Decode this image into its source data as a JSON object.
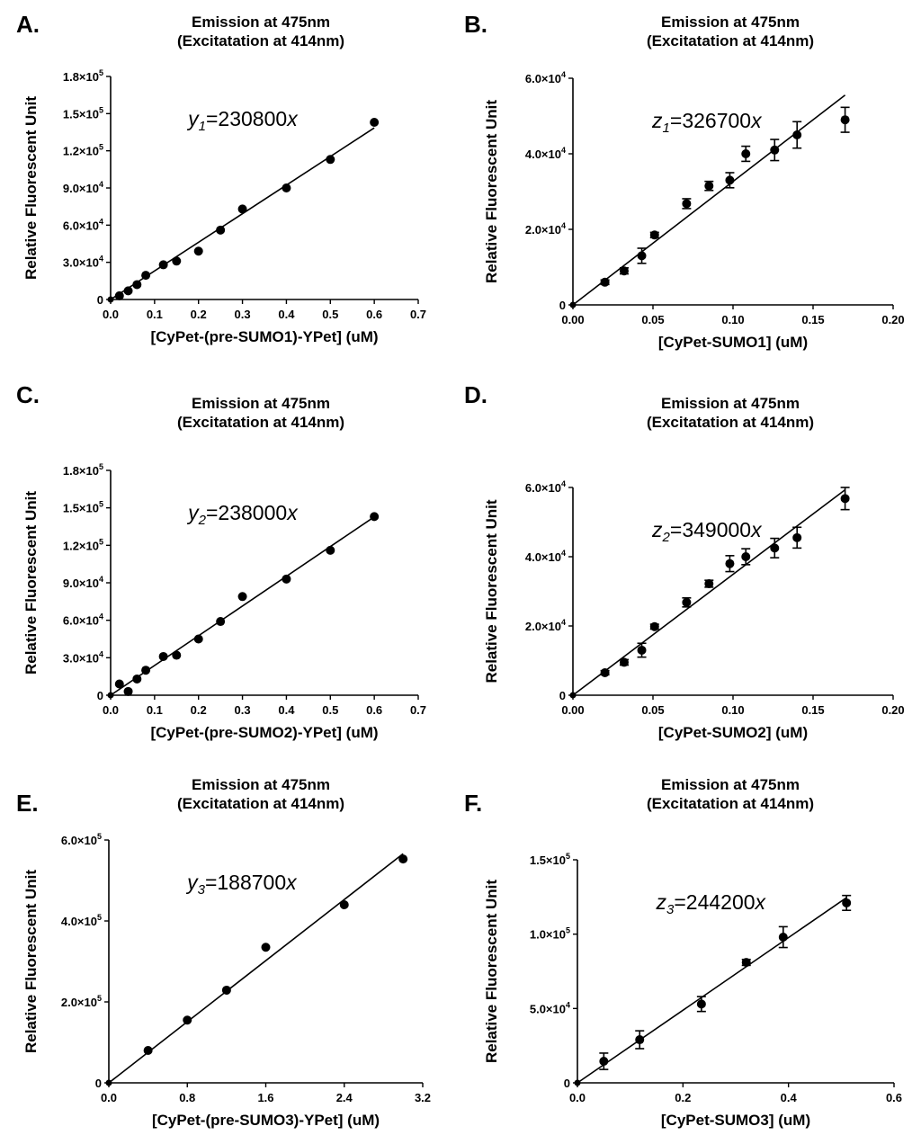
{
  "chart_data": [
    {
      "type": "scatter",
      "panel_label": "A.",
      "title_line1": "Emission at 475nm",
      "title_line2": "(Excitatation at 414nm)",
      "xlabel": "[CyPet-(pre-SUMO1)-YPet] (uM)",
      "ylabel": "Relative Fluorescent Unit",
      "xlim": [
        0,
        0.7
      ],
      "ylim": [
        0,
        180000
      ],
      "xticks": [
        0,
        0.1,
        0.2,
        0.3,
        0.4,
        0.5,
        0.6,
        0.7
      ],
      "xtick_labels": [
        "0.0",
        "0.1",
        "0.2",
        "0.3",
        "0.4",
        "0.5",
        "0.6",
        "0.7"
      ],
      "yticks": [
        0,
        30000,
        60000,
        90000,
        120000,
        150000,
        180000
      ],
      "ytick_labels": [
        {
          "mant": "0",
          "exp": ""
        },
        {
          "mant": "3.0×10",
          "exp": "4"
        },
        {
          "mant": "6.0×10",
          "exp": "4"
        },
        {
          "mant": "9.0×10",
          "exp": "4"
        },
        {
          "mant": "1.2×10",
          "exp": "5"
        },
        {
          "mant": "1.5×10",
          "exp": "5"
        },
        {
          "mant": "1.8×10",
          "exp": "5"
        }
      ],
      "equation": {
        "var": "y",
        "sub": "1",
        "rest": "=230800",
        "x": "x"
      },
      "fit": {
        "slope": 230800,
        "x_end": 0.6
      },
      "points": [
        {
          "x": 0.02,
          "y": 3000
        },
        {
          "x": 0.04,
          "y": 7000
        },
        {
          "x": 0.06,
          "y": 12000
        },
        {
          "x": 0.08,
          "y": 19500
        },
        {
          "x": 0.12,
          "y": 28000
        },
        {
          "x": 0.15,
          "y": 31000
        },
        {
          "x": 0.2,
          "y": 39000
        },
        {
          "x": 0.25,
          "y": 56000
        },
        {
          "x": 0.3,
          "y": 73000
        },
        {
          "x": 0.4,
          "y": 90000
        },
        {
          "x": 0.5,
          "y": 113000
        },
        {
          "x": 0.6,
          "y": 143000
        }
      ]
    },
    {
      "type": "scatter",
      "panel_label": "B.",
      "title_line1": "Emission at 475nm",
      "title_line2": "(Excitatation at 414nm)",
      "xlabel": "[CyPet-SUMO1] (uM)",
      "ylabel": "Relative Fluorescent Unit",
      "xlim": [
        0,
        0.2
      ],
      "ylim": [
        0,
        60000
      ],
      "xticks": [
        0,
        0.05,
        0.1,
        0.15,
        0.2
      ],
      "xtick_labels": [
        "0.00",
        "0.05",
        "0.10",
        "0.15",
        "0.20"
      ],
      "yticks": [
        0,
        20000,
        40000,
        60000
      ],
      "ytick_labels": [
        {
          "mant": "0",
          "exp": ""
        },
        {
          "mant": "2.0×10",
          "exp": "4"
        },
        {
          "mant": "4.0×10",
          "exp": "4"
        },
        {
          "mant": "6.0×10",
          "exp": "4"
        }
      ],
      "equation": {
        "var": "z",
        "sub": "1",
        "rest": "=326700",
        "x": "x"
      },
      "fit": {
        "slope": 326700,
        "x_end": 0.17
      },
      "points": [
        {
          "x": 0.02,
          "y": 6000,
          "err": 600
        },
        {
          "x": 0.032,
          "y": 9000,
          "err": 800
        },
        {
          "x": 0.043,
          "y": 13000,
          "err": 2000
        },
        {
          "x": 0.051,
          "y": 18500,
          "err": 700
        },
        {
          "x": 0.071,
          "y": 26800,
          "err": 1300
        },
        {
          "x": 0.085,
          "y": 31500,
          "err": 1200
        },
        {
          "x": 0.098,
          "y": 33000,
          "err": 2000
        },
        {
          "x": 0.108,
          "y": 40000,
          "err": 2000
        },
        {
          "x": 0.126,
          "y": 41000,
          "err": 2800
        },
        {
          "x": 0.14,
          "y": 45000,
          "err": 3500
        },
        {
          "x": 0.17,
          "y": 49000,
          "err": 3300
        }
      ]
    },
    {
      "type": "scatter",
      "panel_label": "C.",
      "title_line1": "Emission at 475nm",
      "title_line2": "(Excitatation at 414nm)",
      "xlabel": "[CyPet-(pre-SUMO2)-YPet] (uM)",
      "ylabel": "Relative Fluorescent Unit",
      "xlim": [
        0,
        0.7
      ],
      "ylim": [
        0,
        180000
      ],
      "xticks": [
        0,
        0.1,
        0.2,
        0.3,
        0.4,
        0.5,
        0.6,
        0.7
      ],
      "xtick_labels": [
        "0.0",
        "0.1",
        "0.2",
        "0.3",
        "0.4",
        "0.5",
        "0.6",
        "0.7"
      ],
      "yticks": [
        0,
        30000,
        60000,
        90000,
        120000,
        150000,
        180000
      ],
      "ytick_labels": [
        {
          "mant": "0",
          "exp": ""
        },
        {
          "mant": "3.0×10",
          "exp": "4"
        },
        {
          "mant": "6.0×10",
          "exp": "4"
        },
        {
          "mant": "9.0×10",
          "exp": "4"
        },
        {
          "mant": "1.2×10",
          "exp": "5"
        },
        {
          "mant": "1.5×10",
          "exp": "5"
        },
        {
          "mant": "1.8×10",
          "exp": "5"
        }
      ],
      "equation": {
        "var": "y",
        "sub": "2",
        "rest": "=238000",
        "x": "x"
      },
      "fit": {
        "slope": 238000,
        "x_end": 0.6
      },
      "points": [
        {
          "x": 0.02,
          "y": 9000
        },
        {
          "x": 0.04,
          "y": 3000
        },
        {
          "x": 0.06,
          "y": 13000
        },
        {
          "x": 0.08,
          "y": 20000
        },
        {
          "x": 0.12,
          "y": 31000
        },
        {
          "x": 0.15,
          "y": 32000
        },
        {
          "x": 0.2,
          "y": 45000
        },
        {
          "x": 0.25,
          "y": 59000
        },
        {
          "x": 0.3,
          "y": 79000
        },
        {
          "x": 0.4,
          "y": 93000
        },
        {
          "x": 0.5,
          "y": 116000
        },
        {
          "x": 0.6,
          "y": 143000
        }
      ]
    },
    {
      "type": "scatter",
      "panel_label": "D.",
      "title_line1": "Emission at 475nm",
      "title_line2": "(Excitatation at 414nm)",
      "xlabel": "[CyPet-SUMO2] (uM)",
      "ylabel": "Relative Fluorescent Unit",
      "xlim": [
        0,
        0.2
      ],
      "ylim": [
        0,
        60000
      ],
      "xticks": [
        0,
        0.05,
        0.1,
        0.15,
        0.2
      ],
      "xtick_labels": [
        "0.00",
        "0.05",
        "0.10",
        "0.15",
        "0.20"
      ],
      "yticks": [
        0,
        20000,
        40000,
        60000
      ],
      "ytick_labels": [
        {
          "mant": "0",
          "exp": ""
        },
        {
          "mant": "2.0×10",
          "exp": "4"
        },
        {
          "mant": "4.0×10",
          "exp": "4"
        },
        {
          "mant": "6.0×10",
          "exp": "4"
        }
      ],
      "equation": {
        "var": "z",
        "sub": "2",
        "rest": "=349000",
        "x": "x"
      },
      "fit": {
        "slope": 349000,
        "x_end": 0.17
      },
      "points": [
        {
          "x": 0.02,
          "y": 6500,
          "err": 600
        },
        {
          "x": 0.032,
          "y": 9500,
          "err": 800
        },
        {
          "x": 0.043,
          "y": 13000,
          "err": 2000
        },
        {
          "x": 0.051,
          "y": 19800,
          "err": 700
        },
        {
          "x": 0.071,
          "y": 26800,
          "err": 1300
        },
        {
          "x": 0.085,
          "y": 32200,
          "err": 1000
        },
        {
          "x": 0.098,
          "y": 38000,
          "err": 2300
        },
        {
          "x": 0.108,
          "y": 40000,
          "err": 2300
        },
        {
          "x": 0.126,
          "y": 42500,
          "err": 2800
        },
        {
          "x": 0.14,
          "y": 45500,
          "err": 3000
        },
        {
          "x": 0.17,
          "y": 56800,
          "err": 3200
        }
      ]
    },
    {
      "type": "scatter",
      "panel_label": "E.",
      "title_line1": "Emission at 475nm",
      "title_line2": "(Excitatation at 414nm)",
      "xlabel": "[CyPet-(pre-SUMO3)-YPet] (uM)",
      "ylabel": "Relative Fluorescent Unit",
      "xlim": [
        0,
        3.2
      ],
      "ylim": [
        0,
        600000
      ],
      "xticks": [
        0,
        0.8,
        1.6,
        2.4,
        3.2
      ],
      "xtick_labels": [
        "0.0",
        "0.8",
        "1.6",
        "2.4",
        "3.2"
      ],
      "yticks": [
        0,
        200000,
        400000,
        600000
      ],
      "ytick_labels": [
        {
          "mant": "0",
          "exp": ""
        },
        {
          "mant": "2.0×10",
          "exp": "5"
        },
        {
          "mant": "4.0×10",
          "exp": "5"
        },
        {
          "mant": "6.0×10",
          "exp": "5"
        }
      ],
      "equation": {
        "var": "y",
        "sub": "3",
        "rest": "=188700",
        "x": "x"
      },
      "fit": {
        "slope": 188700,
        "x_end": 3.0
      },
      "points": [
        {
          "x": 0.4,
          "y": 80000
        },
        {
          "x": 0.8,
          "y": 155000
        },
        {
          "x": 1.2,
          "y": 229000
        },
        {
          "x": 1.6,
          "y": 335000
        },
        {
          "x": 2.4,
          "y": 440000
        },
        {
          "x": 3.0,
          "y": 553000
        }
      ]
    },
    {
      "type": "scatter",
      "panel_label": "F.",
      "title_line1": "Emission at 475nm",
      "title_line2": "(Excitatation at 414nm)",
      "xlabel": "[CyPet-SUMO3] (uM)",
      "ylabel": "Relative Fluorescent Unit",
      "xlim": [
        0,
        0.6
      ],
      "ylim": [
        0,
        150000
      ],
      "xticks": [
        0,
        0.2,
        0.4,
        0.6
      ],
      "xtick_labels": [
        "0.0",
        "0.2",
        "0.4",
        "0.6"
      ],
      "yticks": [
        0,
        50000,
        100000,
        150000
      ],
      "ytick_labels": [
        {
          "mant": "0",
          "exp": ""
        },
        {
          "mant": "5.0×10",
          "exp": "4"
        },
        {
          "mant": "1.0×10",
          "exp": "5"
        },
        {
          "mant": "1.5×10",
          "exp": "5"
        }
      ],
      "equation": {
        "var": "z",
        "sub": "3",
        "rest": "=244200",
        "x": "x"
      },
      "fit": {
        "slope": 244200,
        "x_end": 0.51
      },
      "points": [
        {
          "x": 0.05,
          "y": 14500,
          "err": 5500
        },
        {
          "x": 0.118,
          "y": 29000,
          "err": 6000
        },
        {
          "x": 0.235,
          "y": 53000,
          "err": 5000
        },
        {
          "x": 0.32,
          "y": 81000,
          "err": 2000
        },
        {
          "x": 0.39,
          "y": 98000,
          "err": 7000
        },
        {
          "x": 0.51,
          "y": 121000,
          "err": 5000
        }
      ]
    }
  ]
}
